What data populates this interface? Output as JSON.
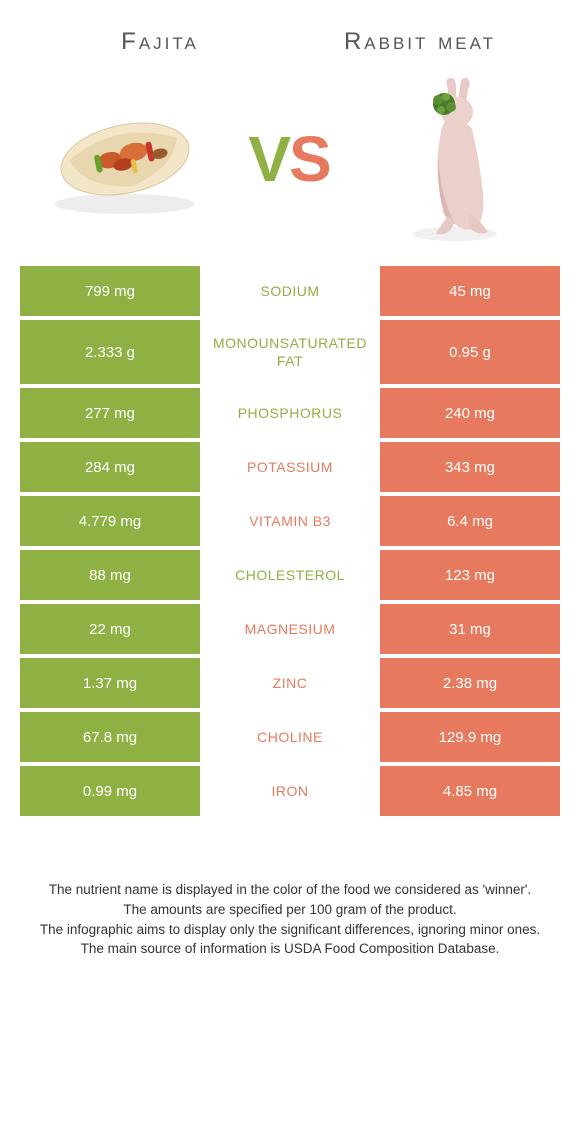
{
  "colors": {
    "fajita": "#8fb043",
    "rabbit": "#e77a5e",
    "fajita_vs": "#8fb043",
    "rabbit_vs": "#e77a5e"
  },
  "food_left": {
    "title": "Fajita"
  },
  "food_right": {
    "title": "Rabbit meat"
  },
  "vs": {
    "v": "V",
    "s": "S"
  },
  "rows": [
    {
      "left": "799 mg",
      "label": "Sodium",
      "right": "45 mg",
      "winner": "left"
    },
    {
      "left": "2.333 g",
      "label": "Monounsaturated Fat",
      "right": "0.95 g",
      "winner": "left"
    },
    {
      "left": "277 mg",
      "label": "Phosphorus",
      "right": "240 mg",
      "winner": "left"
    },
    {
      "left": "284 mg",
      "label": "Potassium",
      "right": "343 mg",
      "winner": "right"
    },
    {
      "left": "4.779 mg",
      "label": "Vitamin B3",
      "right": "6.4 mg",
      "winner": "right"
    },
    {
      "left": "88 mg",
      "label": "Cholesterol",
      "right": "123 mg",
      "winner": "left"
    },
    {
      "left": "22 mg",
      "label": "Magnesium",
      "right": "31 mg",
      "winner": "right"
    },
    {
      "left": "1.37 mg",
      "label": "Zinc",
      "right": "2.38 mg",
      "winner": "right"
    },
    {
      "left": "67.8 mg",
      "label": "Choline",
      "right": "129.9 mg",
      "winner": "right"
    },
    {
      "left": "0.99 mg",
      "label": "Iron",
      "right": "4.85 mg",
      "winner": "right"
    }
  ],
  "footnotes": [
    "The nutrient name is displayed in the color of the food we considered as 'winner'.",
    "The amounts are specified per 100 gram of the product.",
    "The infographic aims to display only the significant differences, ignoring minor ones.",
    "The main source of information is USDA Food Composition Database."
  ]
}
